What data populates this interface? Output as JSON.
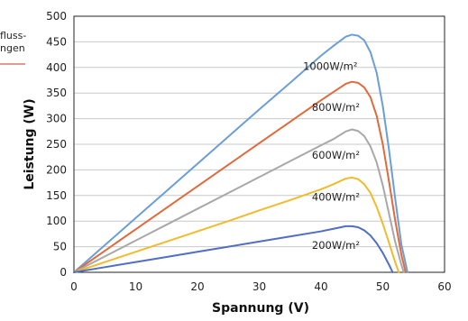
{
  "chart_data": {
    "type": "line",
    "xlabel": "Spannung (V)",
    "ylabel": "Leistung (W)",
    "xlim": [
      0,
      60
    ],
    "ylim": [
      0,
      500
    ],
    "x_ticks": [
      "0",
      "10",
      "20",
      "30",
      "40",
      "50",
      "60"
    ],
    "y_ticks": [
      "0",
      "50",
      "100",
      "150",
      "200",
      "250",
      "300",
      "350",
      "400",
      "450",
      "500"
    ],
    "grid": "horizontal",
    "legend_fragment": [
      "fluss-",
      "ngen"
    ],
    "series": [
      {
        "name": "1000W/m²",
        "color": "#6a9fd6",
        "x": [
          0,
          5,
          10,
          15,
          20,
          25,
          30,
          35,
          40,
          42,
          44,
          45,
          46,
          47,
          48,
          49,
          50,
          51,
          52,
          53,
          54
        ],
        "y": [
          0,
          53,
          106,
          159,
          212,
          265,
          318,
          370,
          423,
          442,
          460,
          464,
          462,
          453,
          430,
          390,
          325,
          240,
          145,
          55,
          0
        ]
      },
      {
        "name": "800W/m²",
        "color": "#e06a3b",
        "x": [
          0,
          5,
          10,
          15,
          20,
          25,
          30,
          35,
          40,
          42,
          44,
          45,
          46,
          47,
          48,
          49,
          50,
          51,
          52,
          53,
          53.7
        ],
        "y": [
          0,
          42,
          84,
          126,
          168,
          210,
          252,
          294,
          336,
          352,
          368,
          372,
          370,
          361,
          342,
          306,
          250,
          178,
          102,
          35,
          0
        ]
      },
      {
        "name": "600W/m²",
        "color": "#a8a8a8",
        "x": [
          0,
          5,
          10,
          15,
          20,
          25,
          30,
          35,
          40,
          42,
          44,
          45,
          46,
          47,
          48,
          49,
          50,
          51,
          52,
          53,
          53.4
        ],
        "y": [
          0,
          31,
          62,
          93,
          124,
          155,
          186,
          217,
          248,
          260,
          275,
          279,
          276,
          266,
          246,
          215,
          170,
          115,
          60,
          15,
          0
        ]
      },
      {
        "name": "400W/m²",
        "color": "#f2bb2b",
        "x": [
          0,
          5,
          10,
          15,
          20,
          25,
          30,
          35,
          40,
          42,
          44,
          45,
          46,
          47,
          48,
          49,
          50,
          51,
          52,
          52.6
        ],
        "y": [
          0,
          20,
          40,
          60,
          80,
          100,
          121,
          141,
          162,
          172,
          183,
          185,
          182,
          172,
          155,
          128,
          95,
          58,
          20,
          0
        ]
      },
      {
        "name": "200W/m²",
        "color": "#4f6fc6",
        "x": [
          0,
          5,
          10,
          15,
          20,
          25,
          30,
          35,
          40,
          42,
          44,
          45,
          46,
          47,
          48,
          49,
          50,
          51,
          51.6
        ],
        "y": [
          0,
          10,
          20,
          30,
          40,
          50,
          60,
          70,
          80,
          85,
          90,
          90,
          88,
          82,
          72,
          57,
          38,
          15,
          0
        ]
      }
    ],
    "curve_labels": [
      {
        "text": "1000W/m²",
        "x": 41.5,
        "y": 395
      },
      {
        "text": "800W/m²",
        "x": 42.4,
        "y": 315
      },
      {
        "text": "600W/m²",
        "x": 42.4,
        "y": 222
      },
      {
        "text": "400W/m²",
        "x": 42.4,
        "y": 140
      },
      {
        "text": "200W/m²",
        "x": 42.4,
        "y": 46
      }
    ]
  }
}
